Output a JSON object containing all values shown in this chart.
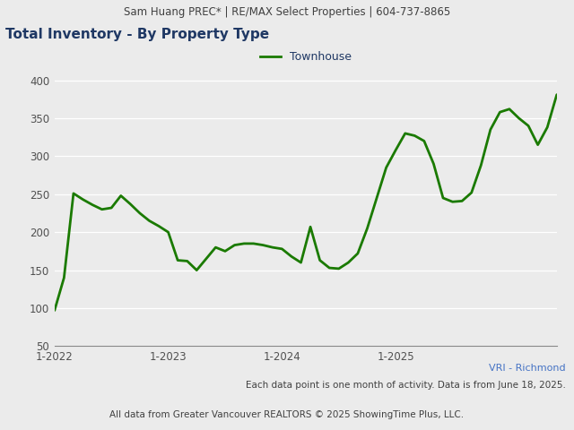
{
  "header_text": "Sam Huang PREC* | RE/MAX Select Properties | 604-737-8865",
  "title": "Total Inventory - By Property Type",
  "legend_label": "Townhouse",
  "line_color": "#1a7a00",
  "line_width": 2.0,
  "ylabel_values": [
    50,
    100,
    150,
    200,
    250,
    300,
    350,
    400
  ],
  "ylim": [
    50,
    415
  ],
  "xtick_positions": [
    0,
    12,
    24,
    36,
    48
  ],
  "xtick_labels": [
    "1-2022",
    "1-2023",
    "1-2024",
    "1-2025",
    ""
  ],
  "footnote1": "VRI - Richmond",
  "footnote1_color": "#4472c4",
  "footnote2": "Each data point is one month of activity. Data is from June 18, 2025.",
  "footnote3": "All data from Greater Vancouver REALTORS © 2025 ShowingTime Plus, LLC.",
  "background_color": "#ebebeb",
  "header_background": "#d9d9d9",
  "plot_background_color": "#ebebeb",
  "grid_color": "#ffffff",
  "title_color": "#1f3864",
  "header_color": "#404040",
  "footnote_color": "#404040",
  "data_y": [
    97,
    140,
    251,
    243,
    236,
    230,
    232,
    248,
    237,
    225,
    215,
    208,
    200,
    163,
    162,
    150,
    165,
    180,
    175,
    183,
    185,
    185,
    183,
    180,
    178,
    168,
    160,
    207,
    163,
    153,
    152,
    160,
    172,
    205,
    245,
    285,
    308,
    330,
    327,
    320,
    290,
    245,
    240,
    241,
    252,
    288,
    335,
    358,
    362,
    350,
    340,
    315,
    338,
    381
  ]
}
